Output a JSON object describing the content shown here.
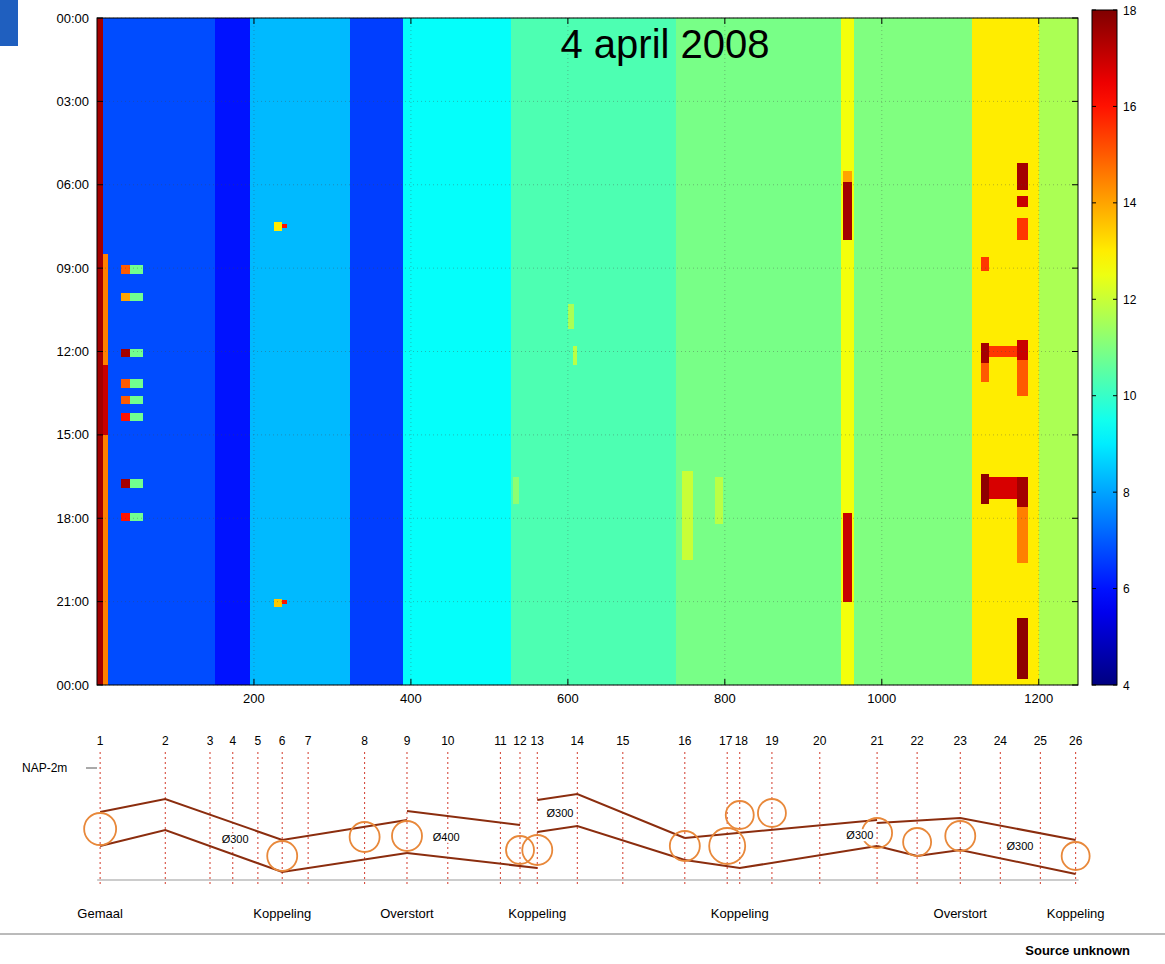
{
  "chart_data": {
    "type": "heatmap",
    "title": "4 april 2008",
    "xlim": [
      0,
      1250
    ],
    "xticks": [
      200,
      400,
      600,
      800,
      1000,
      1200
    ],
    "ylim": [
      0,
      24
    ],
    "yticks": [
      {
        "value": 0,
        "label": "00:00"
      },
      {
        "value": 3,
        "label": "03:00"
      },
      {
        "value": 6,
        "label": "06:00"
      },
      {
        "value": 9,
        "label": "09:00"
      },
      {
        "value": 12,
        "label": "12:00"
      },
      {
        "value": 15,
        "label": "15:00"
      },
      {
        "value": 18,
        "label": "18:00"
      },
      {
        "value": 21,
        "label": "21:00"
      },
      {
        "value": 24,
        "label": "00:00"
      }
    ],
    "grid": true,
    "colorbar": {
      "range": [
        4,
        18
      ],
      "ticks": [
        4,
        6,
        8,
        10,
        12,
        14,
        16,
        18
      ]
    },
    "bands": [
      {
        "x": [
          0,
          8
        ],
        "value": 17.5
      },
      {
        "x": [
          8,
          150
        ],
        "value": 6.8
      },
      {
        "x": [
          150,
          195
        ],
        "value": 6.0
      },
      {
        "x": [
          195,
          322
        ],
        "value": 8.3
      },
      {
        "x": [
          322,
          390
        ],
        "value": 6.6
      },
      {
        "x": [
          390,
          527
        ],
        "value": 9.3
      },
      {
        "x": [
          527,
          738
        ],
        "value": 10.3
      },
      {
        "x": [
          738,
          948
        ],
        "value": 10.9
      },
      {
        "x": [
          948,
          964
        ],
        "value": 12.6
      },
      {
        "x": [
          964,
          1115
        ],
        "value": 11.0
      },
      {
        "x": [
          1115,
          1200
        ],
        "value": 13.0
      },
      {
        "x": [
          1200,
          1250
        ],
        "value": 11.6
      }
    ],
    "cells": [
      {
        "x": [
          8,
          14
        ],
        "t": [
          8.5,
          24
        ],
        "value": 14.5
      },
      {
        "x": [
          8,
          14
        ],
        "t": [
          12.5,
          15
        ],
        "value": 17
      },
      {
        "x": [
          30,
          42
        ],
        "t": [
          8.9,
          9.2
        ],
        "value": 15
      },
      {
        "x": [
          30,
          42
        ],
        "t": [
          9.9,
          10.2
        ],
        "value": 14
      },
      {
        "x": [
          30,
          42
        ],
        "t": [
          11.9,
          12.2
        ],
        "value": 17.5
      },
      {
        "x": [
          30,
          42
        ],
        "t": [
          13.0,
          13.3
        ],
        "value": 15
      },
      {
        "x": [
          30,
          42
        ],
        "t": [
          13.6,
          13.9
        ],
        "value": 15
      },
      {
        "x": [
          30,
          42
        ],
        "t": [
          14.2,
          14.5
        ],
        "value": 16
      },
      {
        "x": [
          30,
          42
        ],
        "t": [
          16.6,
          16.9
        ],
        "value": 17.5
      },
      {
        "x": [
          30,
          42
        ],
        "t": [
          17.8,
          18.1
        ],
        "value": 16
      },
      {
        "x": [
          42,
          58
        ],
        "t": [
          8.9,
          9.2
        ],
        "value": 10.8
      },
      {
        "x": [
          42,
          58
        ],
        "t": [
          9.9,
          10.2
        ],
        "value": 10.8
      },
      {
        "x": [
          42,
          58
        ],
        "t": [
          11.9,
          12.2
        ],
        "value": 10.8
      },
      {
        "x": [
          42,
          58
        ],
        "t": [
          13.0,
          13.3
        ],
        "value": 10.8
      },
      {
        "x": [
          42,
          58
        ],
        "t": [
          13.6,
          13.9
        ],
        "value": 10.8
      },
      {
        "x": [
          42,
          58
        ],
        "t": [
          14.2,
          14.5
        ],
        "value": 10.8
      },
      {
        "x": [
          42,
          58
        ],
        "t": [
          16.6,
          16.9
        ],
        "value": 10.8
      },
      {
        "x": [
          42,
          58
        ],
        "t": [
          17.8,
          18.1
        ],
        "value": 10.8
      },
      {
        "x": [
          225,
          236
        ],
        "t": [
          7.35,
          7.65
        ],
        "value": 13
      },
      {
        "x": [
          225,
          236
        ],
        "t": [
          20.9,
          21.2
        ],
        "value": 13.5
      },
      {
        "x": [
          236,
          242
        ],
        "t": [
          7.4,
          7.55
        ],
        "value": 16
      },
      {
        "x": [
          236,
          242
        ],
        "t": [
          20.95,
          21.1
        ],
        "value": 16
      },
      {
        "x": [
          600,
          608
        ],
        "t": [
          10.3,
          11.2
        ],
        "value": 11.6
      },
      {
        "x": [
          606,
          612
        ],
        "t": [
          11.8,
          12.5
        ],
        "value": 11.8
      },
      {
        "x": [
          745,
          760
        ],
        "t": [
          16.3,
          19.5
        ],
        "value": 12.0
      },
      {
        "x": [
          788,
          798
        ],
        "t": [
          16.5,
          18.2
        ],
        "value": 11.8
      },
      {
        "x": [
          530,
          538
        ],
        "t": [
          16.5,
          17.5
        ],
        "value": 11.2
      },
      {
        "x": [
          950,
          962
        ],
        "t": [
          5.5,
          5.9
        ],
        "value": 14
      },
      {
        "x": [
          950,
          962
        ],
        "t": [
          5.9,
          8.0
        ],
        "value": 17.5
      },
      {
        "x": [
          950,
          962
        ],
        "t": [
          17.8,
          21.0
        ],
        "value": 17
      },
      {
        "x": [
          1126,
          1137
        ],
        "t": [
          8.6,
          9.1
        ],
        "value": 15.5
      },
      {
        "x": [
          1126,
          1137
        ],
        "t": [
          11.7,
          12.4
        ],
        "value": 17.5
      },
      {
        "x": [
          1126,
          1137
        ],
        "t": [
          12.4,
          13.1
        ],
        "value": 15
      },
      {
        "x": [
          1126,
          1137
        ],
        "t": [
          16.4,
          17.5
        ],
        "value": 17.8
      },
      {
        "x": [
          1137,
          1172
        ],
        "t": [
          11.8,
          12.2
        ],
        "value": 15.5
      },
      {
        "x": [
          1137,
          1172
        ],
        "t": [
          16.5,
          17.3
        ],
        "value": 16.8
      },
      {
        "x": [
          1172,
          1186
        ],
        "t": [
          5.2,
          6.2
        ],
        "value": 17.5
      },
      {
        "x": [
          1172,
          1186
        ],
        "t": [
          6.4,
          6.8
        ],
        "value": 17
      },
      {
        "x": [
          1172,
          1186
        ],
        "t": [
          7.2,
          8.0
        ],
        "value": 15.5
      },
      {
        "x": [
          1172,
          1186
        ],
        "t": [
          11.6,
          12.3
        ],
        "value": 17
      },
      {
        "x": [
          1172,
          1186
        ],
        "t": [
          12.3,
          13.6
        ],
        "value": 15
      },
      {
        "x": [
          1172,
          1186
        ],
        "t": [
          16.5,
          17.6
        ],
        "value": 17.5
      },
      {
        "x": [
          1172,
          1186
        ],
        "t": [
          17.6,
          19.6
        ],
        "value": 14.5
      },
      {
        "x": [
          1172,
          1186
        ],
        "t": [
          21.6,
          23.8
        ],
        "value": 17.8
      }
    ]
  },
  "profile": {
    "datum_label": "NAP-2m",
    "stations": [
      {
        "label": "1",
        "x": 4
      },
      {
        "label": "2",
        "x": 87
      },
      {
        "label": "3",
        "x": 144
      },
      {
        "label": "4",
        "x": 173
      },
      {
        "label": "5",
        "x": 205
      },
      {
        "label": "6",
        "x": 236
      },
      {
        "label": "7",
        "x": 269
      },
      {
        "label": "8",
        "x": 341
      },
      {
        "label": "9",
        "x": 395
      },
      {
        "label": "10",
        "x": 447
      },
      {
        "label": "11",
        "x": 514
      },
      {
        "label": "12",
        "x": 539
      },
      {
        "label": "13",
        "x": 561
      },
      {
        "label": "14",
        "x": 612
      },
      {
        "label": "15",
        "x": 670
      },
      {
        "label": "16",
        "x": 749
      },
      {
        "label": "17",
        "x": 803
      },
      {
        "label": "18",
        "x": 819
      },
      {
        "label": "19",
        "x": 860
      },
      {
        "label": "20",
        "x": 921
      },
      {
        "label": "21",
        "x": 994
      },
      {
        "label": "22",
        "x": 1045
      },
      {
        "label": "23",
        "x": 1100
      },
      {
        "label": "24",
        "x": 1151
      },
      {
        "label": "25",
        "x": 1202
      },
      {
        "label": "26",
        "x": 1247
      }
    ],
    "pipe_labels": [
      {
        "text": "Ø300",
        "x": 176
      },
      {
        "text": "Ø400",
        "x": 445
      },
      {
        "text": "Ø300",
        "x": 590
      },
      {
        "text": "Ø300",
        "x": 972
      },
      {
        "text": "Ø300",
        "x": 1176
      }
    ],
    "location_labels": [
      {
        "text": "Gemaal",
        "x": 4
      },
      {
        "text": "Koppeling",
        "x": 236
      },
      {
        "text": "Overstort",
        "x": 395
      },
      {
        "text": "Koppeling",
        "x": 561
      },
      {
        "text": "Koppeling",
        "x": 819
      },
      {
        "text": "Overstort",
        "x": 1100
      },
      {
        "text": "Koppeling",
        "x": 1247
      }
    ]
  },
  "footer": {
    "source": "Source unknown"
  }
}
